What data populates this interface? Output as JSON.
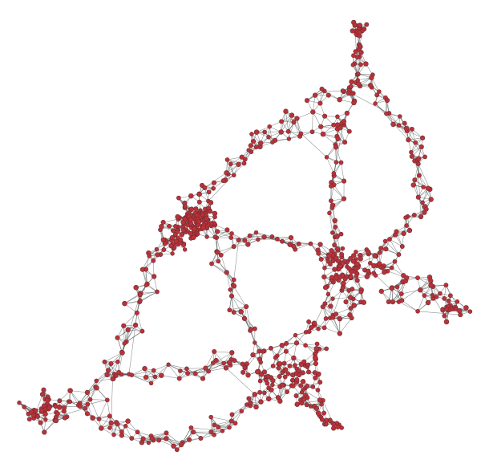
{
  "diagram": {
    "type": "network-graph",
    "style": {
      "node_fill": "#b8323a",
      "node_stroke": "#6e2a2e",
      "edge_color": "#3c4446",
      "background": "#ffffff"
    },
    "node_shape": "circle",
    "visible_text": "none"
  }
}
